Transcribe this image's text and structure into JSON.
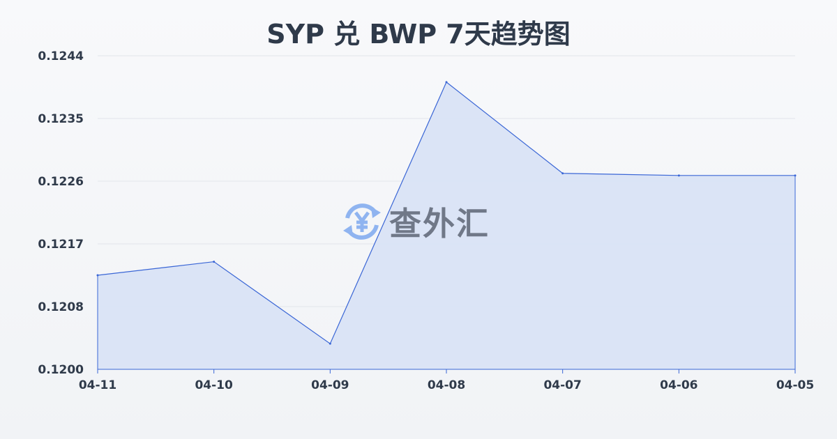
{
  "chart_data": {
    "type": "area",
    "title": "SYP 兑 BWP 7天趋势图",
    "xlabel": "",
    "ylabel": "",
    "categories": [
      "04-11",
      "04-10",
      "04-09",
      "04-08",
      "04-07",
      "04-06",
      "04-05"
    ],
    "values": [
      0.12132,
      0.12151,
      0.12036,
      0.12403,
      0.12275,
      0.12272,
      0.12272
    ],
    "ylim": [
      0.12,
      0.1244
    ],
    "yticks": [
      "0.1244",
      "0.1235",
      "0.1226",
      "0.1217",
      "0.1208",
      "0.1200"
    ],
    "grid": true,
    "line_color": "#3a66d6",
    "fill_color": "#d9e3f6"
  },
  "watermark": {
    "text": "查外汇",
    "icon": "yen-exchange-icon",
    "color": "#8fb4f0"
  }
}
